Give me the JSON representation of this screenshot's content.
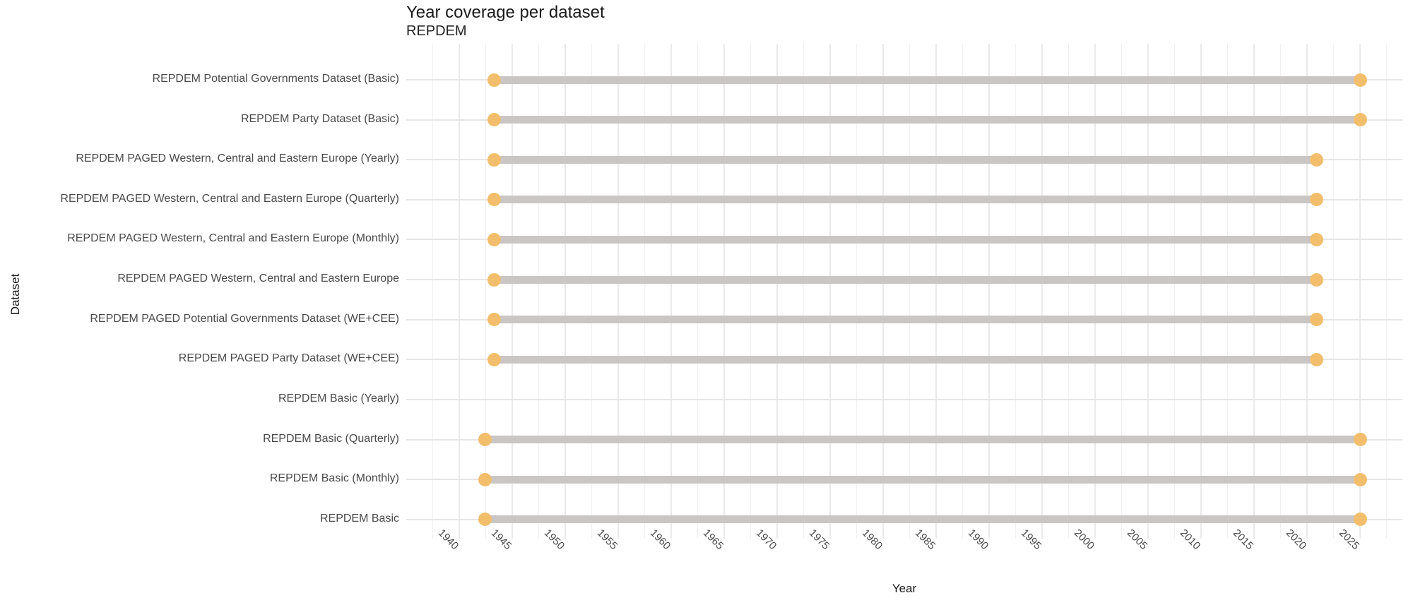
{
  "chart": {
    "title": "Year coverage per dataset",
    "subtitle": "REPDEM",
    "x_axis_label": "Year",
    "y_axis_label": "Dataset"
  },
  "colors": {
    "background": "#FFFFFF",
    "dot": "#F2BE6C",
    "bar": "#CAC6C6",
    "row_gridline": "#E7E5E5",
    "major_gridline": "#EAEAEA",
    "minor_gridline": "#F1F1F1",
    "title_text": "#1A1A1A",
    "axis_text": "#4A4A4A"
  },
  "chart_data": {
    "type": "dumbbell",
    "title": "Year coverage per dataset",
    "subtitle": "REPDEM",
    "xlabel": "Year",
    "ylabel": "Dataset",
    "legend": "none",
    "grid": "horizontal row lines plus vertical major/minor gridlines",
    "xlim": [
      1935,
      2029
    ],
    "x_ticks": [
      1940,
      1945,
      1950,
      1955,
      1960,
      1965,
      1970,
      1975,
      1980,
      1985,
      1990,
      1995,
      2000,
      2005,
      2010,
      2015,
      2020,
      2025
    ],
    "x_tick_rotation_deg": 45,
    "categories": [
      "REPDEM Potential Governments Dataset (Basic)",
      "REPDEM Party Dataset (Basic)",
      "REPDEM PAGED Western, Central and Eastern Europe (Yearly)",
      "REPDEM PAGED Western, Central and Eastern Europe (Quarterly)",
      "REPDEM PAGED Western, Central and Eastern Europe (Monthly)",
      "REPDEM PAGED Western, Central and Eastern Europe",
      "REPDEM PAGED Potential Governments Dataset (WE+CEE)",
      "REPDEM PAGED Party Dataset (WE+CEE)",
      "REPDEM Basic (Yearly)",
      "REPDEM Basic (Quarterly)",
      "REPDEM Basic (Monthly)",
      "REPDEM Basic"
    ],
    "ranges": [
      {
        "label": "REPDEM Potential Governments Dataset (Basic)",
        "start": 1943.3,
        "end": 2025
      },
      {
        "label": "REPDEM Party Dataset (Basic)",
        "start": 1943.3,
        "end": 2025
      },
      {
        "label": "REPDEM PAGED Western, Central and Eastern Europe (Yearly)",
        "start": 1943.3,
        "end": 2020.9
      },
      {
        "label": "REPDEM PAGED Western, Central and Eastern Europe (Quarterly)",
        "start": 1943.3,
        "end": 2020.9
      },
      {
        "label": "REPDEM PAGED Western, Central and Eastern Europe (Monthly)",
        "start": 1943.3,
        "end": 2020.9
      },
      {
        "label": "REPDEM PAGED Western, Central and Eastern Europe",
        "start": 1943.3,
        "end": 2020.9
      },
      {
        "label": "REPDEM PAGED Potential Governments Dataset (WE+CEE)",
        "start": 1943.3,
        "end": 2020.9
      },
      {
        "label": "REPDEM PAGED Party Dataset (WE+CEE)",
        "start": 1943.3,
        "end": 2020.9
      },
      {
        "label": "REPDEM Basic (Yearly)",
        "start": null,
        "end": null
      },
      {
        "label": "REPDEM Basic (Quarterly)",
        "start": 1942.4,
        "end": 2025
      },
      {
        "label": "REPDEM Basic (Monthly)",
        "start": 1942.4,
        "end": 2025
      },
      {
        "label": "REPDEM Basic",
        "start": 1942.4,
        "end": 2025
      }
    ]
  }
}
